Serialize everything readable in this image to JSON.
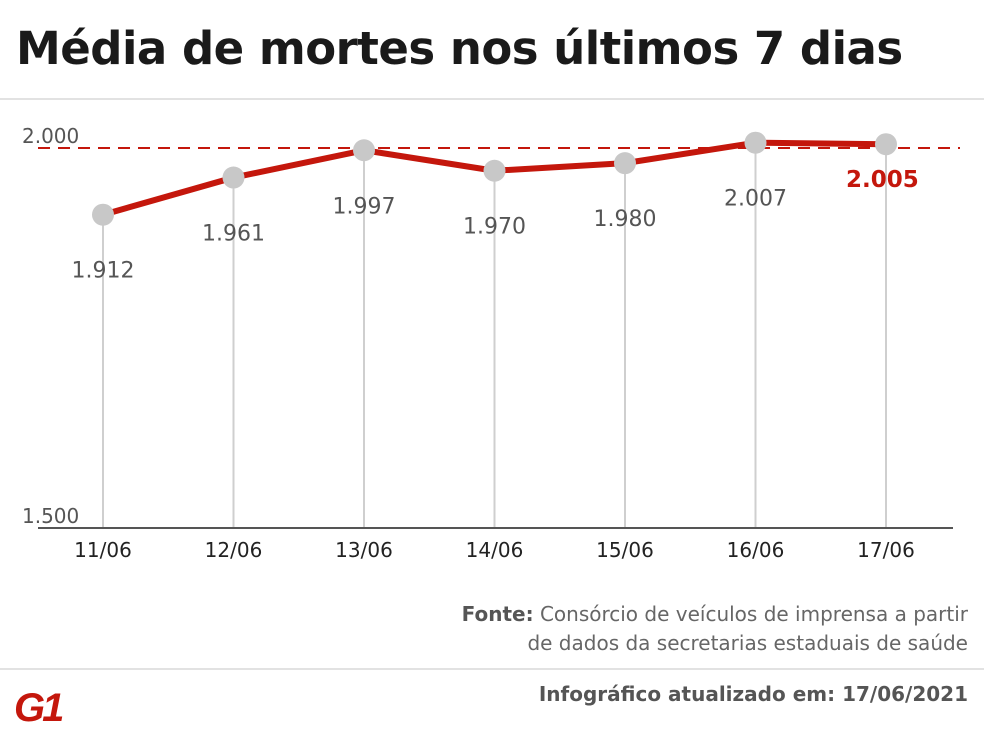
{
  "title": "Média de mortes nos últimos 7 dias",
  "chart_data": {
    "type": "line",
    "categories": [
      "11/06",
      "12/06",
      "13/06",
      "14/06",
      "15/06",
      "16/06",
      "17/06"
    ],
    "values": [
      1912,
      1961,
      1997,
      1970,
      1980,
      2007,
      2005
    ],
    "value_labels": [
      "1.912",
      "1.961",
      "1.997",
      "1.970",
      "1.980",
      "2.007",
      "2.005"
    ],
    "y_ticks": [
      {
        "value": 1500,
        "label": "1.500"
      },
      {
        "value": 2000,
        "label": "2.000"
      }
    ],
    "ylim": [
      1500,
      2000
    ],
    "reference_line": 2000,
    "grid": false,
    "colors": {
      "line": "#c4170c",
      "marker": "#c8c8c8",
      "highlight_label": "#c4170c",
      "label": "#555555"
    }
  },
  "source": {
    "label": "Fonte:",
    "line1": "Consórcio de veículos de imprensa a partir",
    "line2": "de dados da secretarias estaduais de saúde"
  },
  "updated": "Infográfico atualizado em: 17/06/2021",
  "logo": {
    "text": "G1",
    "color": "#c4170c"
  }
}
